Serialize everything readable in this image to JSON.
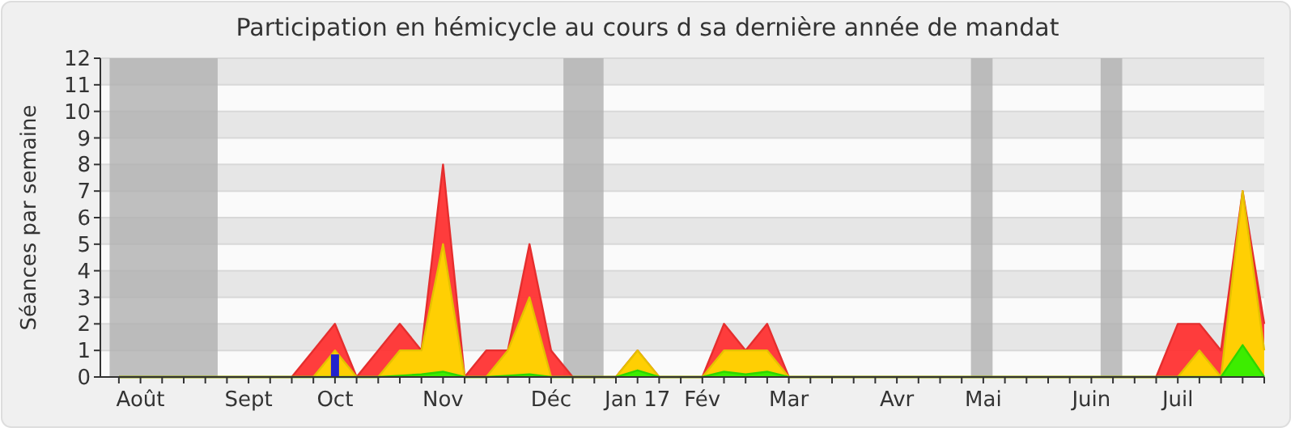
{
  "chart_data": {
    "type": "area",
    "title": "Participation en hémicycle au cours d sa dernière année de mandat",
    "ylabel": "Séances par semaine",
    "x": [
      "2016-07-27",
      "2016-08-03",
      "2016-08-10",
      "2016-08-17",
      "2016-08-24",
      "2016-08-31",
      "2016-09-07",
      "2016-09-14",
      "2016-09-21",
      "2016-09-28",
      "2016-10-05",
      "2016-10-12",
      "2016-10-19",
      "2016-10-26",
      "2016-11-02",
      "2016-11-09",
      "2016-11-16",
      "2016-11-23",
      "2016-11-30",
      "2016-12-07",
      "2016-12-14",
      "2016-12-21",
      "2016-12-28",
      "2017-01-04",
      "2017-01-11",
      "2017-01-18",
      "2017-01-25",
      "2017-02-01",
      "2017-02-08",
      "2017-02-15",
      "2017-02-22",
      "2017-03-01",
      "2017-03-08",
      "2017-03-15",
      "2017-03-22",
      "2017-03-29",
      "2017-04-05",
      "2017-04-12",
      "2017-04-19",
      "2017-04-26",
      "2017-05-03",
      "2017-05-10",
      "2017-05-17",
      "2017-05-24",
      "2017-05-31",
      "2017-06-07",
      "2017-06-14",
      "2017-06-21",
      "2017-06-28",
      "2017-07-05",
      "2017-07-12",
      "2017-07-19",
      "2017-07-26",
      "2017-08-02"
    ],
    "xlim": [
      "2016-07-21",
      "2017-08-02"
    ],
    "xticks": [
      {
        "value": "2016-08-03",
        "label": "Août"
      },
      {
        "value": "2016-09-07",
        "label": "Sept"
      },
      {
        "value": "2016-10-05",
        "label": "Oct"
      },
      {
        "value": "2016-11-09",
        "label": "Nov"
      },
      {
        "value": "2016-12-14",
        "label": "Déc"
      },
      {
        "value": "2017-01-11",
        "label": "Jan 17"
      },
      {
        "value": "2017-02-01",
        "label": "Fév"
      },
      {
        "value": "2017-03-01",
        "label": "Mar"
      },
      {
        "value": "2017-04-05",
        "label": "Avr"
      },
      {
        "value": "2017-05-03",
        "label": "Mai"
      },
      {
        "value": "2017-06-07",
        "label": "Juin"
      },
      {
        "value": "2017-07-05",
        "label": "Juil"
      }
    ],
    "ylim": [
      0,
      12
    ],
    "yticks": [
      0,
      1,
      2,
      3,
      4,
      5,
      6,
      7,
      8,
      9,
      10,
      11,
      12
    ],
    "grid": "y",
    "series": [
      {
        "color": "#ff3333",
        "values": [
          0,
          0,
          0,
          0,
          0,
          0,
          0,
          0,
          0,
          1,
          2,
          0,
          1,
          2,
          1,
          8,
          0,
          1,
          1,
          5,
          1,
          0,
          0,
          0,
          1,
          0,
          0,
          0,
          2,
          1,
          2,
          0,
          0,
          0,
          0,
          0,
          0,
          0,
          0,
          0,
          0,
          0,
          0,
          0,
          0,
          0,
          0,
          0,
          0,
          2,
          2,
          1,
          7,
          2
        ]
      },
      {
        "color": "#ffd700",
        "values": [
          0,
          0,
          0,
          0,
          0,
          0,
          0,
          0,
          0,
          0,
          1,
          0,
          0,
          1,
          1,
          5,
          0,
          0,
          1,
          3,
          0,
          0,
          0,
          0,
          1,
          0,
          0,
          0,
          1,
          1,
          1,
          0,
          0,
          0,
          0,
          0,
          0,
          0,
          0,
          0,
          0,
          0,
          0,
          0,
          0,
          0,
          0,
          0,
          0,
          0,
          1,
          0,
          7,
          1
        ]
      },
      {
        "color": "#33ee00",
        "values": [
          0,
          0,
          0,
          0,
          0,
          0,
          0,
          0,
          0,
          0,
          0,
          0,
          0,
          0.05,
          0.1,
          0.2,
          0,
          0,
          0.05,
          0.1,
          0,
          0,
          0,
          0,
          0.25,
          0,
          0,
          0,
          0.2,
          0.1,
          0.2,
          0,
          0,
          0,
          0,
          0,
          0,
          0,
          0,
          0,
          0,
          0,
          0,
          0,
          0,
          0,
          0,
          0,
          0,
          0,
          0,
          0,
          1.2,
          0
        ]
      },
      {
        "type": "bar",
        "color": "#2222cc",
        "values": [
          null,
          null,
          null,
          null,
          null,
          null,
          null,
          null,
          null,
          null,
          0.85,
          null,
          null,
          null,
          null,
          null,
          null,
          null,
          null,
          null,
          null,
          null,
          null,
          null,
          null,
          null,
          null,
          null,
          null,
          null,
          null,
          null,
          null,
          null,
          null,
          null,
          null,
          null,
          null,
          null,
          null,
          null,
          null,
          null,
          null,
          null,
          null,
          null,
          null,
          null,
          null,
          null,
          null,
          null
        ]
      }
    ],
    "bands": [
      {
        "axis": "x",
        "from": "2016-07-24",
        "to": "2016-08-28",
        "color": "#b0b0b0"
      },
      {
        "axis": "x",
        "from": "2016-12-18",
        "to": "2016-12-31",
        "color": "#b0b0b0"
      },
      {
        "axis": "x",
        "from": "2017-04-29",
        "to": "2017-05-06",
        "color": "#b0b0b0"
      },
      {
        "axis": "x",
        "from": "2017-06-10",
        "to": "2017-06-17",
        "color": "#b0b0b0"
      }
    ]
  }
}
